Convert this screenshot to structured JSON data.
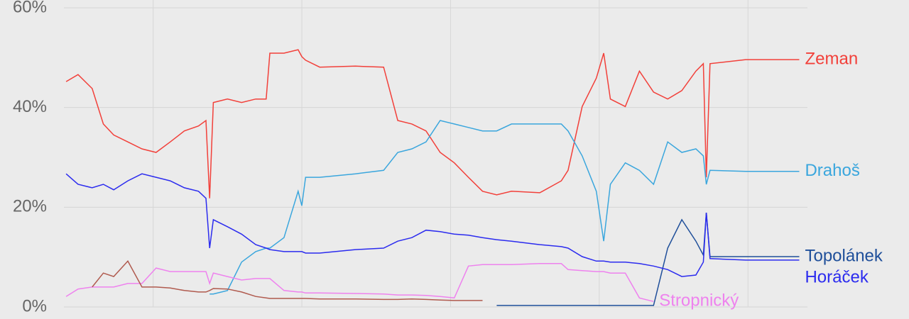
{
  "chart_data": {
    "type": "line",
    "x": [
      0.3,
      1.9,
      3.8,
      5.3,
      6.7,
      8.6,
      10.5,
      12.4,
      14.3,
      16.2,
      18.1,
      19.1,
      19.6,
      20.1,
      22,
      23.9,
      25.8,
      27.2,
      27.7,
      29.6,
      31.5,
      32,
      32.5,
      34.4,
      39.2,
      43,
      44.9,
      46.8,
      48.7,
      50.6,
      52.5,
      54.4,
      56.3,
      58.2,
      60.2,
      64,
      66.9,
      67.8,
      69.7,
      71.6,
      72.6,
      73.5,
      75.5,
      77.4,
      79.3,
      81.2,
      83.1,
      85,
      86,
      86.4,
      86.9,
      91.7,
      98.9
    ],
    "xlim": [
      0,
      100
    ],
    "xticks": [
      12,
      32,
      52,
      72,
      92
    ],
    "ylim": [
      0,
      60
    ],
    "yticks": [
      {
        "value": 0,
        "label": "0%"
      },
      {
        "value": 20,
        "label": "20%"
      },
      {
        "value": 40,
        "label": "40%"
      },
      {
        "value": 60,
        "label": "60%"
      }
    ],
    "grid": true,
    "series": [
      {
        "name": "Zeman",
        "color": "#f2403a",
        "values": [
          45.2,
          46.6,
          43.8,
          36.7,
          34.5,
          33.1,
          31.7,
          31,
          33.1,
          35.3,
          36.3,
          37.4,
          21.8,
          41,
          41.7,
          41,
          41.7,
          41.7,
          50.9,
          50.9,
          51.6,
          50.2,
          49.5,
          48.1,
          48.3,
          48.1,
          37.4,
          36.7,
          35.3,
          31,
          28.9,
          26,
          23.2,
          22.5,
          23.2,
          22.9,
          25.3,
          27.4,
          40.2,
          45.9,
          50.9,
          41.7,
          40.2,
          47.3,
          43.1,
          41.7,
          43.4,
          47.3,
          48.8,
          26,
          48.8,
          49.6,
          49.6
        ]
      },
      {
        "name": "Drahoš",
        "color": "#3aa6dd",
        "values": [
          null,
          null,
          null,
          null,
          null,
          null,
          null,
          null,
          null,
          null,
          null,
          null,
          2.6,
          2.6,
          3.3,
          9,
          11.1,
          11.8,
          11.8,
          13.9,
          23.2,
          20.3,
          26,
          26,
          26.7,
          27.4,
          31,
          31.7,
          33.1,
          37.4,
          36.7,
          36,
          35.3,
          35.3,
          36.7,
          36.7,
          36.7,
          35.3,
          30.3,
          23.2,
          13.2,
          24.6,
          28.9,
          27.4,
          24.6,
          33.1,
          31,
          31.7,
          30.3,
          24.6,
          27.4,
          27.2,
          27.2
        ]
      },
      {
        "name": "Topolánek",
        "color": "#1f4f9a",
        "values": [
          null,
          null,
          null,
          null,
          null,
          null,
          null,
          null,
          null,
          null,
          null,
          null,
          null,
          null,
          null,
          null,
          null,
          null,
          null,
          null,
          null,
          null,
          null,
          null,
          null,
          null,
          null,
          null,
          null,
          null,
          null,
          null,
          null,
          0.3,
          0.3,
          0.3,
          0.3,
          0.3,
          0.3,
          0.3,
          0.3,
          0.3,
          0.3,
          0.3,
          0.3,
          11.8,
          17.5,
          13.2,
          10.4,
          18.9,
          10.1,
          10.1,
          10.1
        ]
      },
      {
        "name": "Horáček",
        "color": "#2b2bef",
        "values": [
          26.7,
          24.6,
          23.9,
          24.6,
          23.5,
          25.3,
          26.7,
          26,
          25.3,
          23.9,
          23.2,
          21.8,
          11.8,
          17.5,
          16.1,
          14.6,
          12.5,
          11.8,
          11.5,
          11.1,
          11.1,
          11.1,
          10.8,
          10.8,
          11.5,
          11.8,
          13.2,
          13.9,
          15.4,
          15.1,
          14.6,
          14.4,
          13.9,
          13.5,
          13.2,
          12.5,
          12.1,
          11.8,
          10.1,
          9.2,
          9.2,
          9,
          9,
          8.7,
          8.2,
          7.5,
          6.1,
          6.4,
          9,
          18.9,
          9.7,
          9.4,
          9.4
        ]
      },
      {
        "name": "Stropnický",
        "color": "#ee82ee",
        "values": [
          2.1,
          3.6,
          4,
          4,
          4,
          4.7,
          4.7,
          7.8,
          7.1,
          7.1,
          7.1,
          7.1,
          4.7,
          6.8,
          6.1,
          5.4,
          5.7,
          5.7,
          5.7,
          3.3,
          3,
          3,
          2.8,
          2.8,
          2.7,
          2.6,
          2.4,
          2.4,
          2.3,
          2.1,
          1.8,
          8.2,
          8.5,
          8.5,
          8.5,
          8.7,
          8.7,
          7.5,
          7.3,
          7.1,
          7.1,
          6.8,
          6.8,
          1.8,
          1.1,
          null,
          null,
          null,
          null,
          null,
          null,
          null,
          null
        ]
      },
      {
        "color": "#b05a4e",
        "values": [
          null,
          null,
          4,
          6.8,
          6.1,
          9.2,
          4,
          4,
          3.8,
          3.3,
          3,
          3,
          3.3,
          3.7,
          3.6,
          3,
          2.1,
          1.8,
          1.7,
          1.7,
          1.7,
          1.7,
          1.7,
          1.6,
          1.6,
          1.5,
          1.5,
          1.6,
          1.5,
          1.4,
          1.3,
          1.3,
          1.3,
          null,
          null,
          null,
          null,
          null,
          null,
          null,
          null,
          null,
          null,
          null,
          null,
          null,
          null,
          null,
          null,
          null,
          null,
          null,
          null
        ]
      }
    ]
  }
}
